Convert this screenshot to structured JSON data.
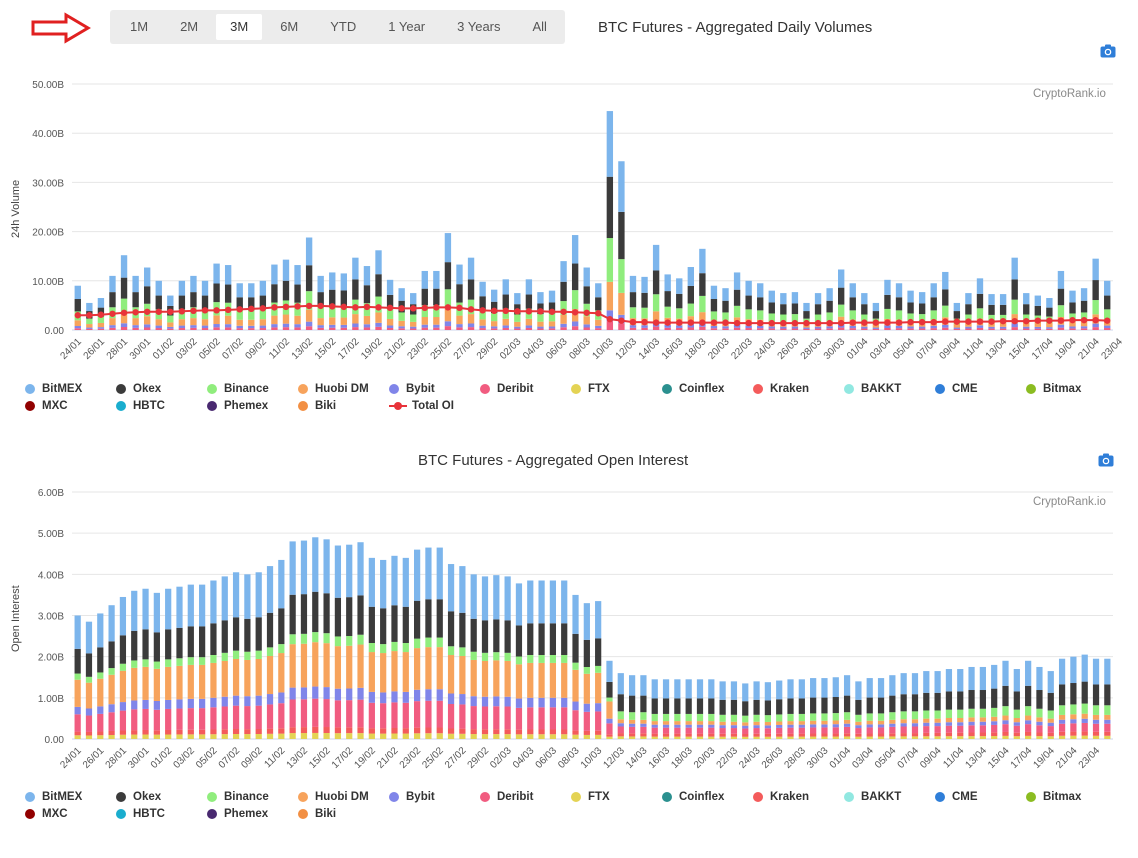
{
  "range_selector": {
    "buttons": [
      "1M",
      "2M",
      "3M",
      "6M",
      "YTD",
      "1 Year",
      "3 Years",
      "All"
    ],
    "active": "3M"
  },
  "watermark": "CryptoRank.io",
  "colors": {
    "BitMEX": "#7cb5ec",
    "Okex": "#3b3b3b",
    "Binance": "#90ed7d",
    "Huobi DM": "#f7a35c",
    "Bybit": "#8085e9",
    "Deribit": "#f15c80",
    "FTX": "#e4d354",
    "Coinflex": "#2b908f",
    "Kraken": "#f45b5b",
    "BAKKT": "#91e8e1",
    "CME": "#2f7ed8",
    "Bitmax": "#8bbc21",
    "MXC": "#910000",
    "HBTC": "#1aadce",
    "Phemex": "#492970",
    "Biki": "#f28f43",
    "Total OI": "#e8333a"
  },
  "chart_data": [
    {
      "type": "bar",
      "stacked": true,
      "title": "BTC Futures - Aggregated Daily Volumes",
      "ylabel": "24h Volume",
      "ylim": [
        0,
        50
      ],
      "ytick_labels": [
        "0.00",
        "10.00B",
        "20.00B",
        "30.00B",
        "40.00B",
        "50.00B"
      ],
      "x_tick_labels": [
        "24/01",
        "26/01",
        "28/01",
        "30/01",
        "01/02",
        "03/02",
        "05/02",
        "07/02",
        "09/02",
        "11/02",
        "13/02",
        "15/02",
        "17/02",
        "19/02",
        "21/02",
        "23/02",
        "25/02",
        "27/02",
        "29/02",
        "02/03",
        "04/03",
        "06/03",
        "08/03",
        "10/03",
        "12/03",
        "14/03",
        "16/03",
        "18/03",
        "20/03",
        "22/03",
        "24/03",
        "26/03",
        "28/03",
        "30/03",
        "01/04",
        "03/04",
        "05/04",
        "07/04",
        "09/04",
        "11/04",
        "13/04",
        "15/04",
        "17/04",
        "19/04",
        "21/04",
        "23/04"
      ],
      "legend": [
        "BitMEX",
        "Okex",
        "Binance",
        "Huobi DM",
        "Bybit",
        "Deribit",
        "FTX",
        "Coinflex",
        "Kraken",
        "BAKKT",
        "CME",
        "Bitmax",
        "MXC",
        "HBTC",
        "Phemex",
        "Biki",
        "Total OI"
      ],
      "totals": [
        9.0,
        5.5,
        6.5,
        11.0,
        15.2,
        11.0,
        12.7,
        10.0,
        7.0,
        10.0,
        11.0,
        10.0,
        13.5,
        13.2,
        9.5,
        9.5,
        10.0,
        13.3,
        14.3,
        13.2,
        18.8,
        11.0,
        11.7,
        11.5,
        14.7,
        13.0,
        16.2,
        10.2,
        8.5,
        7.5,
        12.0,
        12.0,
        19.7,
        13.3,
        14.7,
        9.8,
        8.2,
        10.3,
        7.5,
        10.3,
        7.7,
        8.0,
        14.0,
        19.3,
        12.7,
        9.5,
        44.5,
        34.3,
        11.0,
        10.8,
        17.3,
        11.3,
        10.5,
        12.8,
        16.5,
        9.0,
        8.5,
        11.7,
        10.0,
        9.5,
        8.0,
        7.5,
        7.7,
        5.5,
        7.5,
        8.5,
        12.3,
        9.5,
        7.5,
        5.5,
        10.2,
        9.5,
        8.0,
        7.7,
        9.5,
        11.8,
        5.5,
        7.5,
        10.5,
        7.3,
        7.3,
        14.7,
        7.5,
        7.0,
        6.5,
        12.0,
        8.0,
        8.5,
        14.5,
        10.0
      ],
      "series": [
        {
          "name": "Total OI",
          "values": [
            3.0,
            3.0,
            3.1,
            3.3,
            3.5,
            3.6,
            3.7,
            3.7,
            3.7,
            3.8,
            3.9,
            4.0,
            4.0,
            4.1,
            4.2,
            4.3,
            4.4,
            4.6,
            4.7,
            4.8,
            4.9,
            4.9,
            4.8,
            4.7,
            4.6,
            4.7,
            4.6,
            4.5,
            4.4,
            4.4,
            4.5,
            4.6,
            4.6,
            4.5,
            4.2,
            4.0,
            3.9,
            3.9,
            3.8,
            3.8,
            3.8,
            3.7,
            3.7,
            3.6,
            3.5,
            3.4,
            2.2,
            1.9,
            1.6,
            1.6,
            1.5,
            1.5,
            1.5,
            1.5,
            1.5,
            1.5,
            1.5,
            1.4,
            1.4,
            1.4,
            1.4,
            1.4,
            1.4,
            1.4,
            1.4,
            1.4,
            1.4,
            1.5,
            1.5,
            1.5,
            1.5,
            1.5,
            1.6,
            1.6,
            1.6,
            1.7,
            1.7,
            1.7,
            1.7,
            1.7,
            1.8,
            1.8,
            1.8,
            1.9,
            1.9,
            1.9,
            2.0,
            2.0,
            2.0,
            1.9
          ]
        }
      ]
    },
    {
      "type": "bar",
      "stacked": true,
      "title": "BTC Futures - Aggregated Open Interest",
      "ylabel": "Open Interest",
      "ylim": [
        0,
        6
      ],
      "ytick_labels": [
        "0.00",
        "1.00B",
        "2.00B",
        "3.00B",
        "4.00B",
        "5.00B",
        "6.00B"
      ],
      "x_tick_labels": [
        "24/01",
        "26/01",
        "28/01",
        "30/01",
        "01/02",
        "03/02",
        "05/02",
        "07/02",
        "09/02",
        "11/02",
        "13/02",
        "15/02",
        "17/02",
        "19/02",
        "21/02",
        "23/02",
        "25/02",
        "27/02",
        "29/02",
        "02/03",
        "04/03",
        "06/03",
        "08/03",
        "10/03",
        "12/03",
        "14/03",
        "16/03",
        "18/03",
        "20/03",
        "22/03",
        "24/03",
        "26/03",
        "28/03",
        "30/03",
        "01/04",
        "03/04",
        "05/04",
        "07/04",
        "09/04",
        "11/04",
        "13/04",
        "15/04",
        "17/04",
        "19/04",
        "21/04",
        "23/04"
      ],
      "legend": [
        "BitMEX",
        "Okex",
        "Binance",
        "Huobi DM",
        "Bybit",
        "Deribit",
        "FTX",
        "Coinflex",
        "Kraken",
        "BAKKT",
        "CME",
        "Bitmax",
        "MXC",
        "HBTC",
        "Phemex",
        "Biki"
      ],
      "totals": [
        3.0,
        2.85,
        3.05,
        3.25,
        3.45,
        3.6,
        3.65,
        3.55,
        3.65,
        3.7,
        3.75,
        3.75,
        3.85,
        3.95,
        4.05,
        4.0,
        4.05,
        4.2,
        4.35,
        4.8,
        4.82,
        4.9,
        4.85,
        4.7,
        4.72,
        4.78,
        4.4,
        4.35,
        4.45,
        4.4,
        4.6,
        4.65,
        4.65,
        4.25,
        4.2,
        4.0,
        3.95,
        3.98,
        3.95,
        3.78,
        3.85,
        3.85,
        3.85,
        3.85,
        3.5,
        3.3,
        3.35,
        1.9,
        1.6,
        1.55,
        1.55,
        1.45,
        1.45,
        1.45,
        1.45,
        1.45,
        1.45,
        1.4,
        1.4,
        1.35,
        1.4,
        1.38,
        1.42,
        1.45,
        1.45,
        1.48,
        1.48,
        1.5,
        1.55,
        1.4,
        1.48,
        1.48,
        1.55,
        1.6,
        1.6,
        1.65,
        1.65,
        1.7,
        1.7,
        1.75,
        1.75,
        1.8,
        1.9,
        1.7,
        1.9,
        1.75,
        1.65,
        1.95,
        2.0,
        2.05,
        1.95,
        1.95
      ]
    }
  ]
}
